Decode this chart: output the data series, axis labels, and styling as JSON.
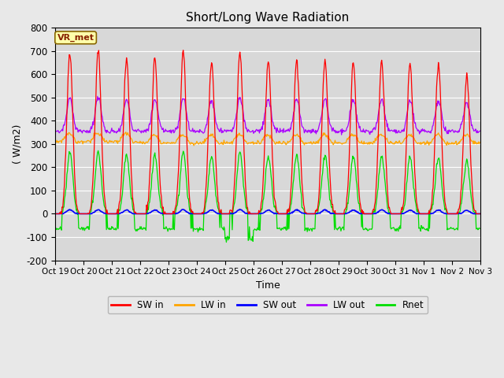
{
  "title": "Short/Long Wave Radiation",
  "xlabel": "Time",
  "ylabel": "( W/m2)",
  "ylim": [
    -200,
    800
  ],
  "background_color": "#e8e8e8",
  "plot_bg_color": "#d8d8d8",
  "grid_color": "#ffffff",
  "colors": {
    "SW_in": "#ff0000",
    "LW_in": "#ffa500",
    "SW_out": "#0000ff",
    "LW_out": "#aa00ff",
    "Rnet": "#00dd00"
  },
  "x_tick_labels": [
    "Oct 19",
    "Oct 20",
    "Oct 21",
    "Oct 22",
    "Oct 23",
    "Oct 24",
    "Oct 25",
    "Oct 26",
    "Oct 27",
    "Oct 28",
    "Oct 29",
    "Oct 30",
    "Oct 31",
    "Nov 1",
    "Nov 2",
    "Nov 3"
  ],
  "x_tick_positions": [
    0,
    24,
    48,
    72,
    96,
    120,
    144,
    168,
    192,
    216,
    240,
    264,
    288,
    312,
    336,
    360
  ],
  "yticks": [
    -200,
    -100,
    0,
    100,
    200,
    300,
    400,
    500,
    600,
    700,
    800
  ],
  "station_label": "VR_met",
  "n_days": 15,
  "sw_peaks": [
    690,
    700,
    670,
    670,
    700,
    660,
    700,
    660,
    660,
    660,
    655,
    655,
    645,
    645,
    595
  ],
  "lw_in_base": 305,
  "lw_out_base": 355,
  "rnet_night": -65
}
